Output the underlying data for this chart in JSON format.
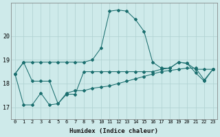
{
  "xlabel": "Humidex (Indice chaleur)",
  "bg_color": "#ceeaea",
  "line_color": "#1a6e6e",
  "grid_color": "#aed0d0",
  "xlim": [
    -0.5,
    23.5
  ],
  "ylim": [
    16.5,
    21.4
  ],
  "yticks": [
    17,
    18,
    19,
    20
  ],
  "xticks": [
    0,
    1,
    2,
    3,
    4,
    5,
    6,
    7,
    8,
    9,
    10,
    11,
    12,
    13,
    14,
    15,
    16,
    17,
    18,
    19,
    20,
    21,
    22,
    23
  ],
  "series": [
    [
      18.4,
      18.9,
      18.9,
      18.9,
      18.9,
      18.9,
      18.9,
      18.9,
      18.9,
      19.0,
      19.5,
      21.05,
      21.1,
      21.05,
      20.7,
      20.2,
      18.9,
      18.65,
      18.65,
      18.9,
      18.85,
      18.45,
      18.1,
      18.6
    ],
    [
      18.4,
      18.9,
      18.1,
      18.1,
      18.1,
      17.15,
      17.55,
      17.55,
      18.5,
      18.5,
      18.5,
      18.5,
      18.5,
      18.5,
      18.5,
      18.5,
      18.5,
      18.6,
      18.65,
      18.9,
      18.85,
      18.6,
      18.6,
      18.6
    ],
    [
      18.4,
      17.1,
      17.1,
      17.6,
      17.1,
      17.15,
      17.6,
      17.7,
      17.7,
      17.8,
      17.85,
      17.9,
      18.0,
      18.1,
      18.2,
      18.3,
      18.4,
      18.5,
      18.55,
      18.6,
      18.65,
      18.65,
      18.15,
      18.6
    ]
  ]
}
